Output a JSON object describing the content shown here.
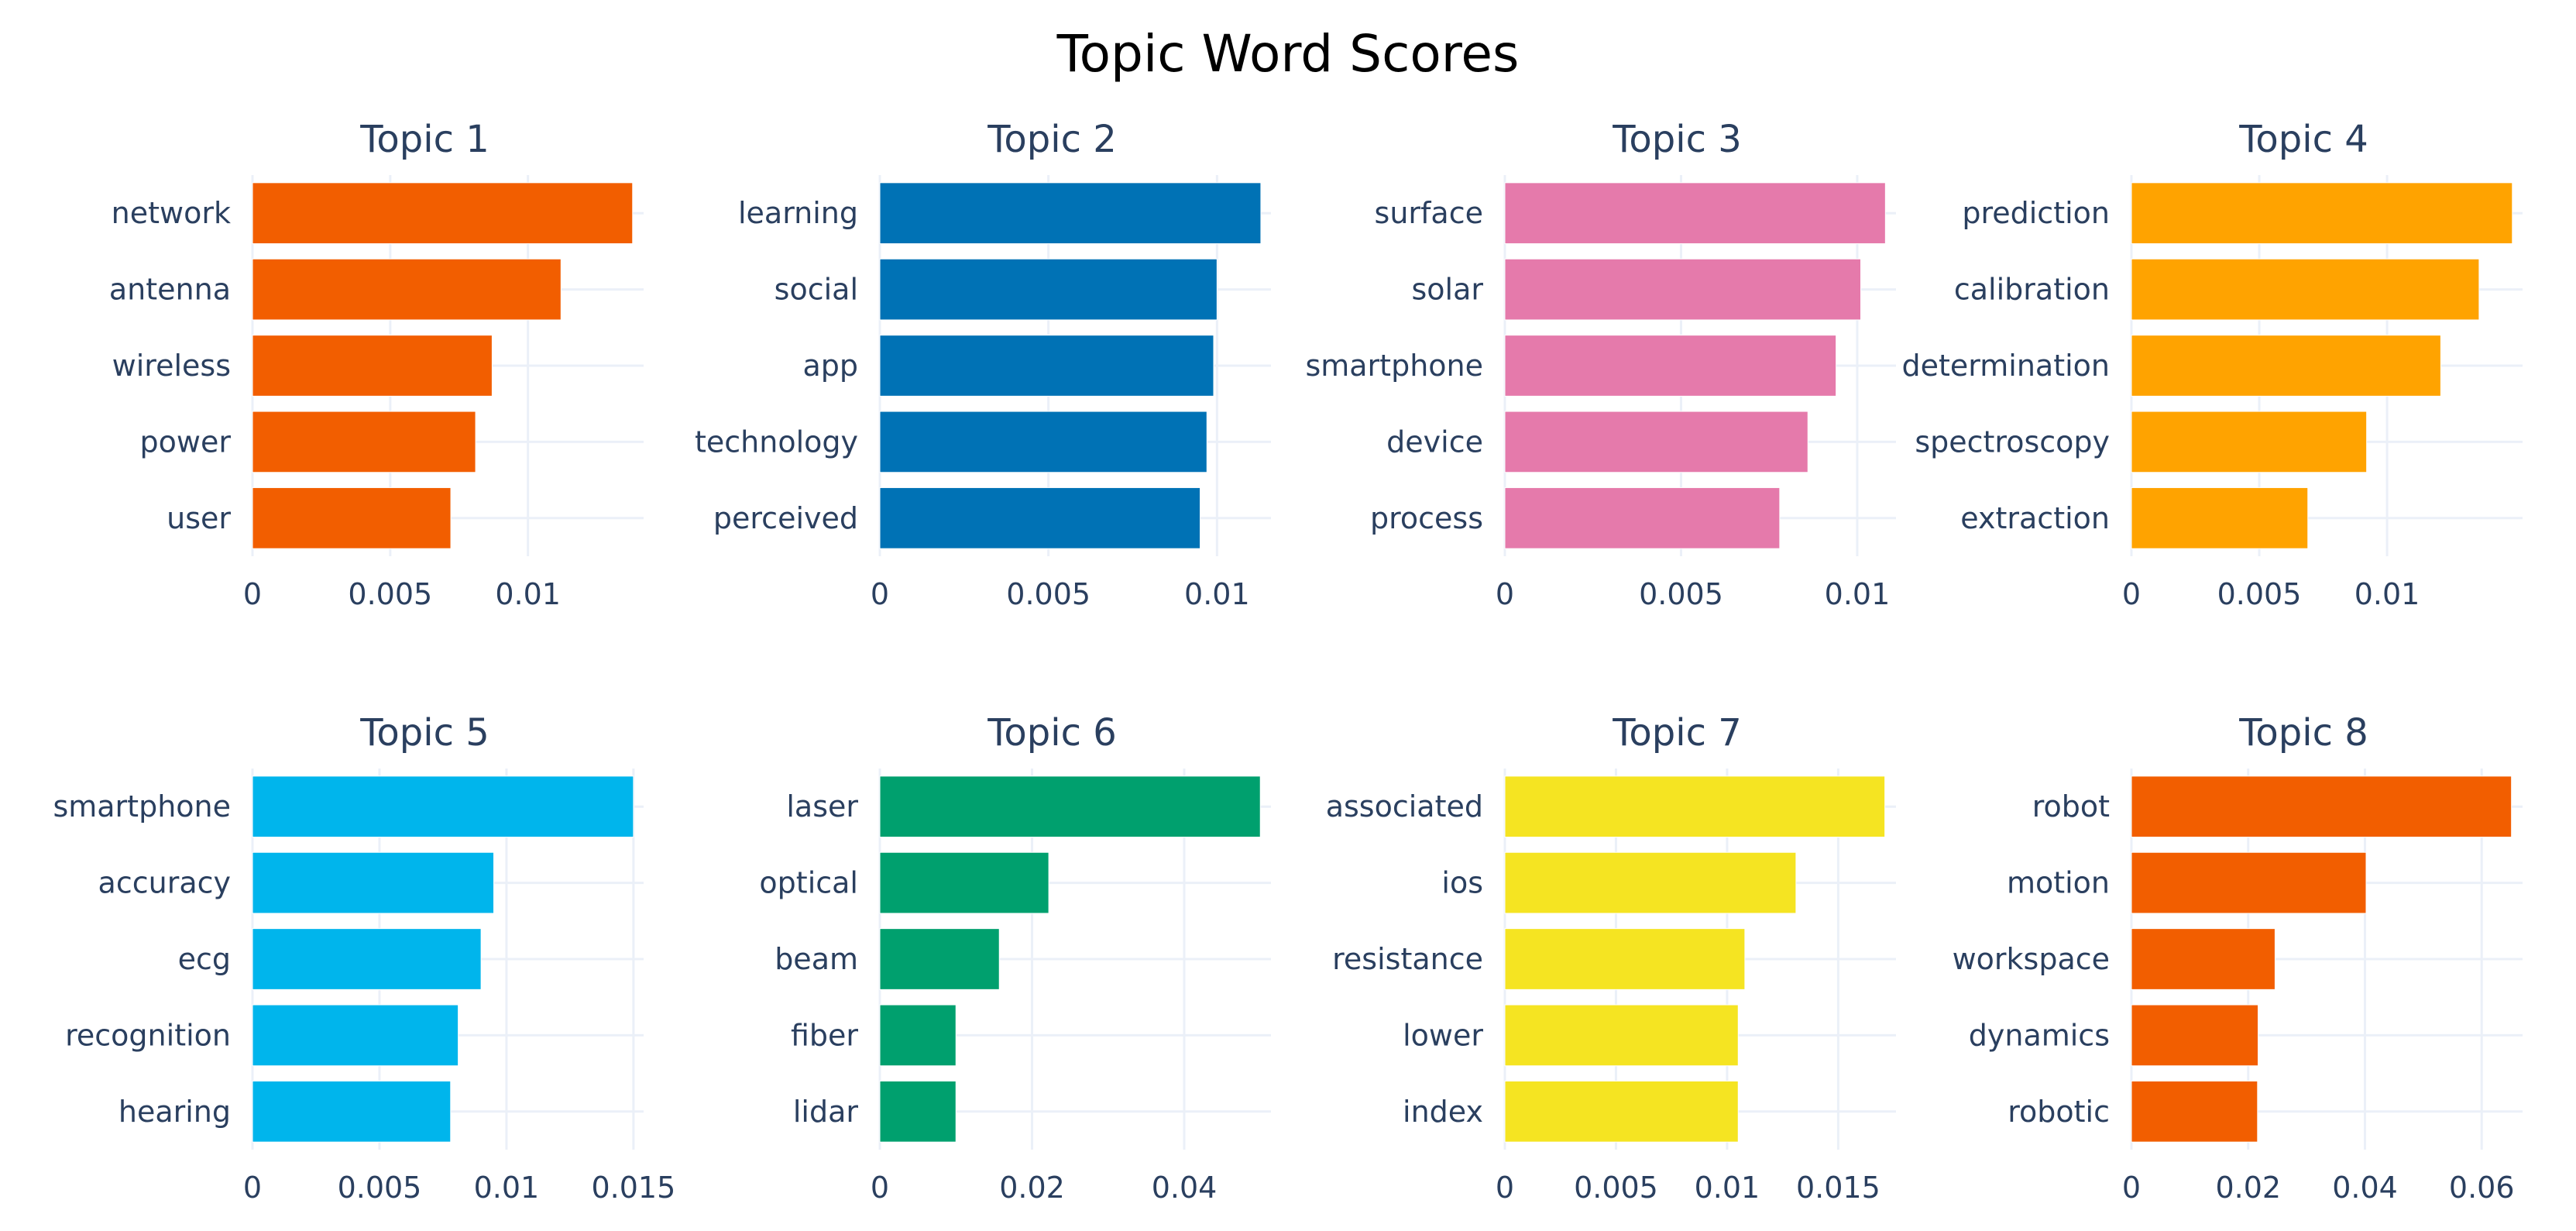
{
  "chart_data": {
    "type": "bar",
    "orientation": "horizontal",
    "title": "Topic Word Scores",
    "grid": true,
    "legend": "none",
    "panels": [
      {
        "title": "Topic 1",
        "color": "#F25E00",
        "words": [
          "network",
          "antenna",
          "wireless",
          "power",
          "user"
        ],
        "values": [
          0.0138,
          0.0112,
          0.0087,
          0.0081,
          0.0072
        ],
        "xlim": [
          0,
          0.0142
        ],
        "ticks": [
          0,
          0.005,
          0.01
        ],
        "tick_labels": [
          "0",
          "0.005",
          "0.01"
        ]
      },
      {
        "title": "Topic 2",
        "color": "#0072B5",
        "words": [
          "learning",
          "social",
          "app",
          "technology",
          "perceived"
        ],
        "values": [
          0.0113,
          0.01,
          0.0099,
          0.0097,
          0.0095
        ],
        "xlim": [
          0,
          0.0116
        ],
        "ticks": [
          0,
          0.005,
          0.01
        ],
        "tick_labels": [
          "0",
          "0.005",
          "0.01"
        ]
      },
      {
        "title": "Topic 3",
        "color": "#E57AAB",
        "words": [
          "surface",
          "solar",
          "smartphone",
          "device",
          "process"
        ],
        "values": [
          0.0108,
          0.0101,
          0.0094,
          0.0086,
          0.0078
        ],
        "xlim": [
          0,
          0.0111
        ],
        "ticks": [
          0,
          0.005,
          0.01
        ],
        "tick_labels": [
          "0",
          "0.005",
          "0.01"
        ]
      },
      {
        "title": "Topic 4",
        "color": "#FFA300",
        "words": [
          "prediction",
          "calibration",
          "determination",
          "spectroscopy",
          "extraction"
        ],
        "values": [
          0.0149,
          0.0136,
          0.0121,
          0.0092,
          0.0069
        ],
        "xlim": [
          0,
          0.0153
        ],
        "ticks": [
          0,
          0.005,
          0.01
        ],
        "tick_labels": [
          "0",
          "0.005",
          "0.01"
        ]
      },
      {
        "title": "Topic 5",
        "color": "#00B5EC",
        "words": [
          "smartphone",
          "accuracy",
          "ecg",
          "recognition",
          "hearing"
        ],
        "values": [
          0.015,
          0.0095,
          0.009,
          0.0081,
          0.0078
        ],
        "xlim": [
          0,
          0.0154
        ],
        "ticks": [
          0,
          0.005,
          0.01,
          0.015
        ],
        "tick_labels": [
          "0",
          "0.005",
          "0.01",
          "0.015"
        ]
      },
      {
        "title": "Topic 6",
        "color": "#00A06E",
        "words": [
          "laser",
          "optical",
          "beam",
          "fiber",
          "lidar"
        ],
        "values": [
          0.05,
          0.0222,
          0.0157,
          0.01,
          0.01
        ],
        "xlim": [
          0,
          0.0514
        ],
        "ticks": [
          0,
          0.02,
          0.04
        ],
        "tick_labels": [
          "0",
          "0.02",
          "0.04"
        ]
      },
      {
        "title": "Topic 7",
        "color": "#F5E422",
        "words": [
          "associated",
          "ios",
          "resistance",
          "lower",
          "index"
        ],
        "values": [
          0.0171,
          0.0131,
          0.0108,
          0.0105,
          0.0105
        ],
        "xlim": [
          0,
          0.0176
        ],
        "ticks": [
          0,
          0.005,
          0.01,
          0.015
        ],
        "tick_labels": [
          "0",
          "0.005",
          "0.01",
          "0.015"
        ]
      },
      {
        "title": "Topic 8",
        "color": "#F25E00",
        "words": [
          "robot",
          "motion",
          "workspace",
          "dynamics",
          "robotic"
        ],
        "values": [
          0.0651,
          0.0402,
          0.0246,
          0.0217,
          0.0216
        ],
        "xlim": [
          0,
          0.067
        ],
        "ticks": [
          0,
          0.02,
          0.04,
          0.06
        ],
        "tick_labels": [
          "0",
          "0.02",
          "0.04",
          "0.06"
        ]
      }
    ]
  }
}
